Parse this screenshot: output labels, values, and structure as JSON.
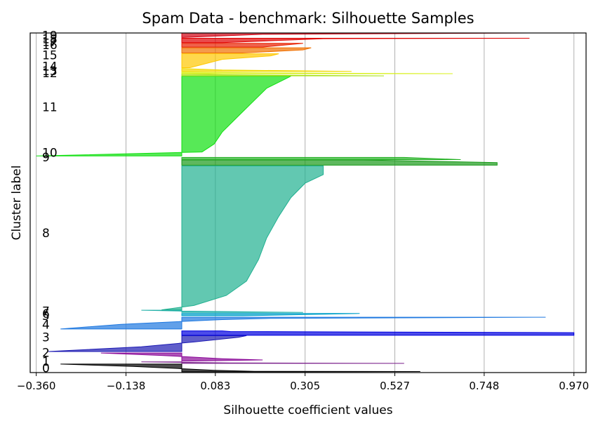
{
  "chart_data": {
    "type": "area",
    "title": "Spam Data - benchmark: Silhouette Samples",
    "xlabel": "Silhouette coefficient values",
    "ylabel": "Cluster label",
    "xlim": [
      -0.375,
      1.0
    ],
    "ylim": [
      0,
      4601
    ],
    "grid": "vertical",
    "x_ticks": [
      -0.36,
      -0.138,
      0.083,
      0.305,
      0.527,
      0.748,
      0.97
    ],
    "x_tick_labels": [
      "−0.360",
      "−0.138",
      "0.083",
      "0.305",
      "0.527",
      "0.748",
      "0.970"
    ],
    "clusters": [
      {
        "label": "0",
        "color": "#000000",
        "y_start": 10,
        "y_end": 115,
        "profile": [
          [
            0,
            0.275
          ],
          [
            0.04,
            0.59
          ],
          [
            0.07,
            0.18
          ],
          [
            0.2,
            0.08
          ],
          [
            0.4,
            0.0
          ],
          [
            0.7,
            -0.12
          ],
          [
            1.0,
            -0.3
          ]
        ]
      },
      {
        "label": "1",
        "color": "#7a1e8a",
        "y_start": 125,
        "y_end": 145,
        "profile": [
          [
            0,
            0.55
          ],
          [
            0.3,
            0.12
          ],
          [
            0.7,
            0.0
          ],
          [
            1.0,
            -0.1
          ]
        ]
      },
      {
        "label": "2",
        "color": "#8b0a99",
        "y_start": 155,
        "y_end": 265,
        "profile": [
          [
            0,
            0.0
          ],
          [
            0.15,
            0.2
          ],
          [
            0.3,
            0.1
          ],
          [
            0.7,
            -0.05
          ],
          [
            1.0,
            -0.2
          ]
        ]
      },
      {
        "label": "3",
        "color": "#1c1ab3",
        "y_start": 285,
        "y_end": 500,
        "profile": [
          [
            0,
            -0.33
          ],
          [
            0.3,
            -0.1
          ],
          [
            0.6,
            0.03
          ],
          [
            0.9,
            0.14
          ],
          [
            1.0,
            0.16
          ]
        ]
      },
      {
        "label": "4",
        "color": "#0000e0",
        "y_start": 505,
        "y_end": 565,
        "profile": [
          [
            0,
            0.97
          ],
          [
            0.6,
            0.97
          ],
          [
            0.85,
            0.12
          ],
          [
            1.0,
            0.1
          ]
        ]
      },
      {
        "label": "5",
        "color": "#1e78e0",
        "y_start": 590,
        "y_end": 750,
        "profile": [
          [
            0,
            -0.3
          ],
          [
            0.4,
            -0.15
          ],
          [
            0.8,
            0.1
          ],
          [
            0.9,
            0.22
          ],
          [
            1.0,
            0.9
          ]
        ]
      },
      {
        "label": "6",
        "color": "#00a0c8",
        "y_start": 770,
        "y_end": 800,
        "profile": [
          [
            0,
            0.15
          ],
          [
            0.5,
            0.3
          ],
          [
            1.0,
            0.44
          ]
        ]
      },
      {
        "label": "7",
        "color": "#20b0a8",
        "y_start": 815,
        "y_end": 845,
        "profile": [
          [
            0,
            0.3
          ],
          [
            0.6,
            0.0
          ],
          [
            1.0,
            -0.1
          ]
        ]
      },
      {
        "label": "8",
        "color": "#20b090",
        "y_start": 850,
        "y_end": 2800,
        "profile": [
          [
            0,
            -0.05
          ],
          [
            0.03,
            0.03
          ],
          [
            0.1,
            0.11
          ],
          [
            0.2,
            0.16
          ],
          [
            0.35,
            0.19
          ],
          [
            0.5,
            0.21
          ],
          [
            0.65,
            0.24
          ],
          [
            0.78,
            0.27
          ],
          [
            0.88,
            0.305
          ],
          [
            0.94,
            0.35
          ],
          [
            1.0,
            0.35
          ]
        ]
      },
      {
        "label": "9",
        "color": "#1a9a1a",
        "y_start": 2810,
        "y_end": 2880,
        "profile": [
          [
            0,
            0.78
          ],
          [
            0.5,
            0.78
          ],
          [
            1.0,
            0.45
          ]
        ]
      },
      {
        "label": "10",
        "color": "#22b022",
        "y_start": 2885,
        "y_end": 2915,
        "profile": [
          [
            0,
            0.69
          ],
          [
            1.0,
            0.55
          ]
        ]
      },
      {
        "label": "11",
        "color": "#10e010",
        "y_start": 2935,
        "y_end": 4015,
        "profile": [
          [
            0,
            -0.36
          ],
          [
            0.05,
            0.05
          ],
          [
            0.15,
            0.08
          ],
          [
            0.3,
            0.1
          ],
          [
            0.5,
            0.14
          ],
          [
            0.7,
            0.18
          ],
          [
            0.85,
            0.21
          ],
          [
            0.95,
            0.25
          ],
          [
            1.0,
            0.27
          ]
        ]
      },
      {
        "label": "12",
        "color": "#a8e018",
        "y_start": 4020,
        "y_end": 4050,
        "profile": [
          [
            0,
            0.5
          ],
          [
            0.5,
            0.1
          ],
          [
            1.0,
            0.0
          ]
        ]
      },
      {
        "label": "13",
        "color": "#d8f018",
        "y_start": 4050,
        "y_end": 4070,
        "profile": [
          [
            0,
            0.67
          ],
          [
            0.5,
            0.2
          ],
          [
            1.0,
            0.0
          ]
        ]
      },
      {
        "label": "14",
        "color": "#f0d800",
        "y_start": 4080,
        "y_end": 4120,
        "profile": [
          [
            0,
            0.42
          ],
          [
            0.5,
            0.1
          ],
          [
            1.0,
            0.0
          ]
        ]
      },
      {
        "label": "15",
        "color": "#ffc800",
        "y_start": 4130,
        "y_end": 4320,
        "profile": [
          [
            0,
            0.02
          ],
          [
            0.6,
            0.1
          ],
          [
            0.85,
            0.22
          ],
          [
            1.0,
            0.24
          ]
        ]
      },
      {
        "label": "16",
        "color": "#f07000",
        "y_start": 4330,
        "y_end": 4400,
        "profile": [
          [
            0,
            0.15
          ],
          [
            0.6,
            0.3
          ],
          [
            1.0,
            0.32
          ]
        ]
      },
      {
        "label": "17",
        "color": "#e82000",
        "y_start": 4410,
        "y_end": 4460,
        "profile": [
          [
            0,
            0.2
          ],
          [
            1.0,
            0.3
          ]
        ]
      },
      {
        "label": "18",
        "color": "#e00000",
        "y_start": 4470,
        "y_end": 4530,
        "profile": [
          [
            0,
            0.1
          ],
          [
            0.9,
            0.35
          ],
          [
            1.0,
            0.86
          ]
        ]
      },
      {
        "label": "19",
        "color": "#d00010",
        "y_start": 4540,
        "y_end": 4601,
        "profile": [
          [
            0,
            0.0
          ],
          [
            0.7,
            0.2
          ],
          [
            1.0,
            0.86
          ]
        ]
      }
    ],
    "label_positions": [
      {
        "label": "0",
        "y": 60
      },
      {
        "label": "1",
        "y": 150
      },
      {
        "label": "2",
        "y": 270
      },
      {
        "label": "3",
        "y": 480
      },
      {
        "label": "4",
        "y": 650
      },
      {
        "label": "5",
        "y": 770
      },
      {
        "label": "6",
        "y": 800
      },
      {
        "label": "7",
        "y": 830
      },
      {
        "label": "8",
        "y": 1890
      },
      {
        "label": "9",
        "y": 2920
      },
      {
        "label": "10",
        "y": 2980
      },
      {
        "label": "11",
        "y": 3600
      },
      {
        "label": "12",
        "y": 4060
      },
      {
        "label": "13",
        "y": 4090
      },
      {
        "label": "14",
        "y": 4150
      },
      {
        "label": "15",
        "y": 4300
      },
      {
        "label": "16",
        "y": 4440
      },
      {
        "label": "17",
        "y": 4480
      },
      {
        "label": "18",
        "y": 4520
      },
      {
        "label": "19",
        "y": 4570
      }
    ]
  }
}
